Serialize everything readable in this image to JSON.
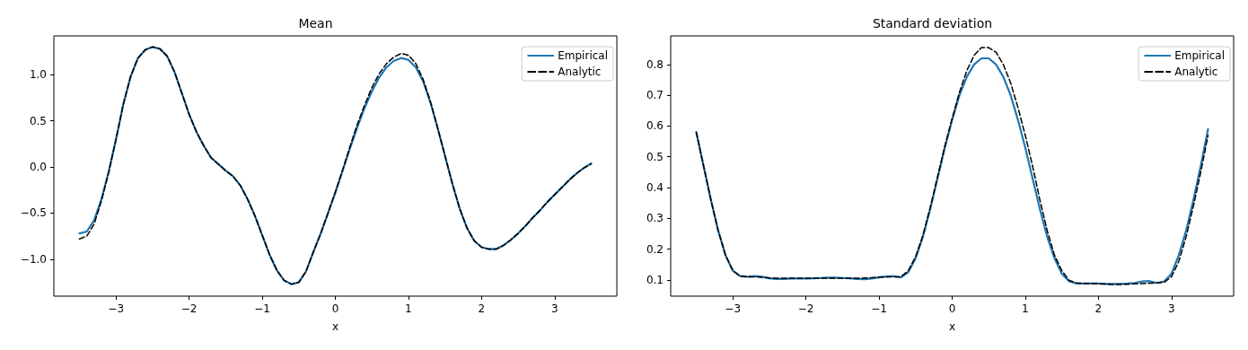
{
  "chart_data": [
    {
      "type": "line",
      "title": "Mean",
      "xlabel": "x",
      "xlim": [
        -3.85,
        3.85
      ],
      "xticks": [
        -3,
        -2,
        -1,
        0,
        1,
        2,
        3
      ],
      "ylim": [
        -1.4,
        1.42
      ],
      "yticks": [
        {
          "value": -1,
          "label": "−1.0"
        },
        {
          "value": -0.5,
          "label": "−0.5"
        },
        {
          "value": 0,
          "label": "0.0"
        },
        {
          "value": 0.5,
          "label": "0.5"
        },
        {
          "value": 1,
          "label": "1.0"
        }
      ],
      "grid": false,
      "legend": "top right",
      "x": [
        -3.5,
        -3.4,
        -3.3,
        -3.2,
        -3.1,
        -3.0,
        -2.9,
        -2.8,
        -2.7,
        -2.6,
        -2.5,
        -2.4,
        -2.3,
        -2.2,
        -2.1,
        -2.0,
        -1.9,
        -1.8,
        -1.7,
        -1.6,
        -1.5,
        -1.4,
        -1.3,
        -1.2,
        -1.1,
        -1.0,
        -0.9,
        -0.8,
        -0.7,
        -0.6,
        -0.5,
        -0.4,
        -0.3,
        -0.2,
        -0.1,
        0.0,
        0.1,
        0.2,
        0.3,
        0.4,
        0.5,
        0.6,
        0.7,
        0.8,
        0.9,
        1.0,
        1.1,
        1.2,
        1.3,
        1.4,
        1.5,
        1.6,
        1.7,
        1.8,
        1.9,
        2.0,
        2.1,
        2.2,
        2.3,
        2.4,
        2.5,
        2.6,
        2.7,
        2.8,
        2.9,
        3.0,
        3.1,
        3.2,
        3.3,
        3.4,
        3.5
      ],
      "series": [
        {
          "name": "Empirical",
          "color": "#1f77b4",
          "line_style": "solid",
          "values": [
            -0.72,
            -0.7,
            -0.58,
            -0.35,
            -0.05,
            0.3,
            0.68,
            0.98,
            1.18,
            1.27,
            1.3,
            1.28,
            1.2,
            1.03,
            0.8,
            0.57,
            0.38,
            0.23,
            0.1,
            0.03,
            -0.04,
            -0.1,
            -0.2,
            -0.35,
            -0.53,
            -0.74,
            -0.95,
            -1.12,
            -1.23,
            -1.27,
            -1.25,
            -1.13,
            -0.92,
            -0.72,
            -0.5,
            -0.28,
            -0.04,
            0.2,
            0.43,
            0.64,
            0.82,
            0.97,
            1.08,
            1.15,
            1.18,
            1.16,
            1.08,
            0.93,
            0.7,
            0.42,
            0.12,
            -0.18,
            -0.45,
            -0.66,
            -0.8,
            -0.87,
            -0.89,
            -0.89,
            -0.85,
            -0.79,
            -0.72,
            -0.64,
            -0.55,
            -0.47,
            -0.38,
            -0.3,
            -0.22,
            -0.14,
            -0.07,
            -0.01,
            0.04
          ]
        },
        {
          "name": "Analytic",
          "color": "#000000",
          "line_style": "dashed",
          "values": [
            -0.78,
            -0.75,
            -0.62,
            -0.37,
            -0.06,
            0.3,
            0.68,
            0.98,
            1.18,
            1.27,
            1.3,
            1.28,
            1.2,
            1.03,
            0.8,
            0.57,
            0.38,
            0.23,
            0.1,
            0.03,
            -0.04,
            -0.1,
            -0.2,
            -0.35,
            -0.53,
            -0.74,
            -0.95,
            -1.12,
            -1.23,
            -1.27,
            -1.25,
            -1.13,
            -0.92,
            -0.72,
            -0.5,
            -0.27,
            -0.03,
            0.22,
            0.46,
            0.67,
            0.86,
            1.01,
            1.12,
            1.19,
            1.23,
            1.21,
            1.12,
            0.95,
            0.71,
            0.42,
            0.12,
            -0.18,
            -0.45,
            -0.66,
            -0.8,
            -0.87,
            -0.89,
            -0.89,
            -0.85,
            -0.79,
            -0.72,
            -0.64,
            -0.55,
            -0.47,
            -0.38,
            -0.3,
            -0.22,
            -0.14,
            -0.07,
            -0.01,
            0.03
          ]
        }
      ]
    },
    {
      "type": "line",
      "title": "Standard deviation",
      "xlabel": "x",
      "xlim": [
        -3.85,
        3.85
      ],
      "xticks": [
        -3,
        -2,
        -1,
        0,
        1,
        2,
        3
      ],
      "ylim": [
        0.047,
        0.893
      ],
      "yticks": [
        0.1,
        0.2,
        0.3,
        0.4,
        0.5,
        0.6,
        0.7,
        0.8
      ],
      "grid": false,
      "legend": "top right",
      "x": [
        -3.5,
        -3.4,
        -3.3,
        -3.2,
        -3.1,
        -3.0,
        -2.9,
        -2.8,
        -2.7,
        -2.6,
        -2.5,
        -2.4,
        -2.3,
        -2.2,
        -2.1,
        -2.0,
        -1.9,
        -1.8,
        -1.7,
        -1.6,
        -1.5,
        -1.4,
        -1.3,
        -1.2,
        -1.1,
        -1.0,
        -0.9,
        -0.8,
        -0.7,
        -0.6,
        -0.5,
        -0.4,
        -0.3,
        -0.2,
        -0.1,
        0.0,
        0.1,
        0.2,
        0.3,
        0.4,
        0.5,
        0.6,
        0.7,
        0.8,
        0.9,
        1.0,
        1.1,
        1.2,
        1.3,
        1.4,
        1.5,
        1.6,
        1.7,
        1.8,
        1.9,
        2.0,
        2.1,
        2.2,
        2.3,
        2.4,
        2.5,
        2.6,
        2.7,
        2.8,
        2.9,
        3.0,
        3.1,
        3.2,
        3.3,
        3.4,
        3.5
      ],
      "series": [
        {
          "name": "Empirical",
          "color": "#1f77b4",
          "line_style": "solid",
          "values": [
            0.58,
            0.47,
            0.36,
            0.26,
            0.18,
            0.13,
            0.112,
            0.11,
            0.112,
            0.11,
            0.105,
            0.103,
            0.103,
            0.104,
            0.104,
            0.104,
            0.105,
            0.106,
            0.107,
            0.107,
            0.106,
            0.105,
            0.103,
            0.102,
            0.104,
            0.108,
            0.111,
            0.112,
            0.108,
            0.125,
            0.17,
            0.24,
            0.33,
            0.43,
            0.53,
            0.62,
            0.7,
            0.76,
            0.8,
            0.82,
            0.82,
            0.8,
            0.76,
            0.7,
            0.62,
            0.53,
            0.43,
            0.33,
            0.24,
            0.17,
            0.12,
            0.095,
            0.088,
            0.088,
            0.088,
            0.088,
            0.087,
            0.087,
            0.087,
            0.088,
            0.09,
            0.095,
            0.096,
            0.09,
            0.095,
            0.12,
            0.18,
            0.26,
            0.36,
            0.47,
            0.59
          ]
        },
        {
          "name": "Analytic",
          "color": "#000000",
          "line_style": "dashed",
          "values": [
            0.58,
            0.47,
            0.36,
            0.26,
            0.18,
            0.13,
            0.112,
            0.11,
            0.11,
            0.108,
            0.106,
            0.105,
            0.105,
            0.105,
            0.105,
            0.105,
            0.105,
            0.105,
            0.105,
            0.105,
            0.105,
            0.105,
            0.105,
            0.106,
            0.107,
            0.109,
            0.11,
            0.11,
            0.11,
            0.13,
            0.175,
            0.245,
            0.335,
            0.435,
            0.535,
            0.625,
            0.71,
            0.78,
            0.83,
            0.855,
            0.855,
            0.84,
            0.8,
            0.74,
            0.66,
            0.57,
            0.47,
            0.36,
            0.26,
            0.18,
            0.13,
            0.098,
            0.09,
            0.088,
            0.088,
            0.087,
            0.086,
            0.085,
            0.085,
            0.086,
            0.087,
            0.088,
            0.089,
            0.09,
            0.092,
            0.11,
            0.16,
            0.24,
            0.34,
            0.45,
            0.57
          ]
        }
      ]
    }
  ]
}
